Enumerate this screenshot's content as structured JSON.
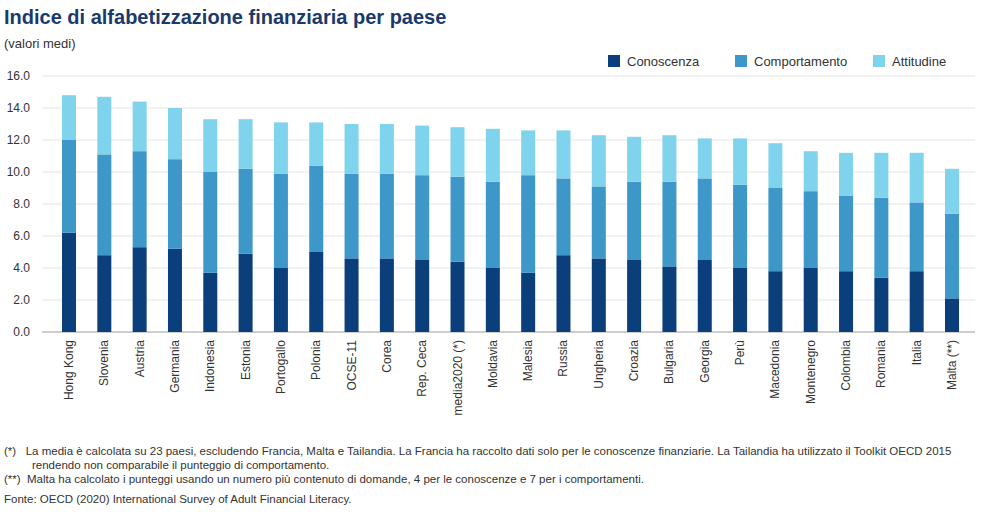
{
  "chart_data": {
    "type": "bar",
    "stacked": true,
    "title": "Indice di alfabetizzazione finanziaria per paese",
    "subtitle": "(valori medi)",
    "categories": [
      "Hong Kong",
      "Slovenia",
      "Austria",
      "Germania",
      "Indonesia",
      "Estonia",
      "Portogallo",
      "Polonia",
      "OCSE-11",
      "Corea",
      "Rep. Ceca",
      "media2020 (*)",
      "Moldavia",
      "Malesia",
      "Russia",
      "Ungheria",
      "Croazia",
      "Bulgaria",
      "Georgia",
      "Perù",
      "Macedonia",
      "Montenegro",
      "Colombia",
      "Romania",
      "Italia",
      "Malta (**)"
    ],
    "series": [
      {
        "name": "Conoscenza",
        "color": "#0b3f7c",
        "values": [
          6.2,
          4.8,
          5.3,
          5.2,
          3.7,
          4.9,
          4.0,
          5.0,
          4.6,
          4.6,
          4.5,
          4.4,
          4.0,
          3.7,
          4.8,
          4.6,
          4.5,
          4.1,
          4.5,
          4.0,
          3.8,
          4.0,
          3.8,
          3.4,
          3.8,
          2.1
        ]
      },
      {
        "name": "Comportamento",
        "color": "#3d97c9",
        "values": [
          5.8,
          6.3,
          6.0,
          5.6,
          6.3,
          5.3,
          5.9,
          5.4,
          5.3,
          5.3,
          5.3,
          5.3,
          5.4,
          6.1,
          4.8,
          4.5,
          4.9,
          5.3,
          5.1,
          5.2,
          5.2,
          4.8,
          4.7,
          5.0,
          4.3,
          5.3
        ]
      },
      {
        "name": "Attitudine",
        "color": "#80d3ec",
        "values": [
          2.8,
          3.6,
          3.1,
          3.2,
          3.3,
          3.1,
          3.2,
          2.7,
          3.1,
          3.1,
          3.1,
          3.1,
          3.3,
          2.8,
          3.0,
          3.2,
          2.8,
          2.9,
          2.5,
          2.9,
          2.8,
          2.5,
          2.7,
          2.8,
          3.1,
          2.8
        ]
      }
    ],
    "ylim": [
      0,
      16
    ],
    "yticks": [
      {
        "value": 0,
        "label": "0.0"
      },
      {
        "value": 2,
        "label": "2.0"
      },
      {
        "value": 4,
        "label": "4.0"
      },
      {
        "value": 6,
        "label": "6.0"
      },
      {
        "value": 8,
        "label": "8.0"
      },
      {
        "value": 10,
        "label": "10.0"
      },
      {
        "value": 12,
        "label": "12.0"
      },
      {
        "value": 14,
        "label": "14.0"
      },
      {
        "value": 16,
        "label": "16.0"
      }
    ],
    "grid": true,
    "legend": "top-right",
    "notes": [
      "(*)   La media è calcolata su 23 paesi, escludendo Francia, Malta e Tailandia. La Francia ha raccolto dati solo per le conoscenze finanziarie. La Tailandia ha utilizzato il Toolkit OECD 2015 rendendo non comparabile il punteggio di comportamento.",
      "(**)  Malta ha calcolato i punteggi usando un numero più contenuto di domande, 4 per le conoscenze e 7 per i comportamenti."
    ],
    "source": "Fonte: OECD (2020) International Survey of Adult Financial Literacy."
  }
}
